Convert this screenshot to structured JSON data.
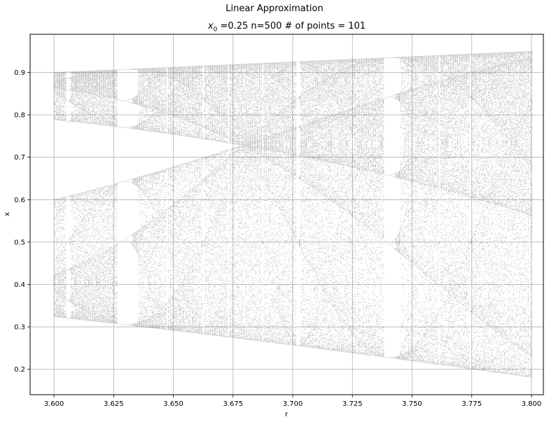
{
  "suptitle": "Linear Approximation",
  "title_prefix": "x",
  "title_sub": "0",
  "title_rest": " =0.25 n=500 # of points = 101",
  "chart_data": {
    "type": "scatter",
    "title": "Linear Approximation",
    "subtitle": "x0 =0.25 n=500 # of points = 101",
    "xlabel": "r",
    "ylabel": "x",
    "xlim": [
      3.59,
      3.805
    ],
    "ylim": [
      0.14,
      0.99
    ],
    "grid": true,
    "x_ticks": [
      3.6,
      3.625,
      3.65,
      3.675,
      3.7,
      3.725,
      3.75,
      3.775,
      3.8
    ],
    "x_tick_labels": [
      "3.600",
      "3.625",
      "3.650",
      "3.675",
      "3.700",
      "3.725",
      "3.750",
      "3.775",
      "3.800"
    ],
    "y_ticks": [
      0.2,
      0.3,
      0.4,
      0.5,
      0.6,
      0.7,
      0.8,
      0.9
    ],
    "y_tick_labels": [
      "0.2",
      "0.3",
      "0.4",
      "0.5",
      "0.6",
      "0.7",
      "0.8",
      "0.9"
    ],
    "r_range": [
      3.6,
      3.8
    ],
    "x0": 0.25,
    "iterations": 500,
    "num_points": 101,
    "point_color": "#000000"
  }
}
